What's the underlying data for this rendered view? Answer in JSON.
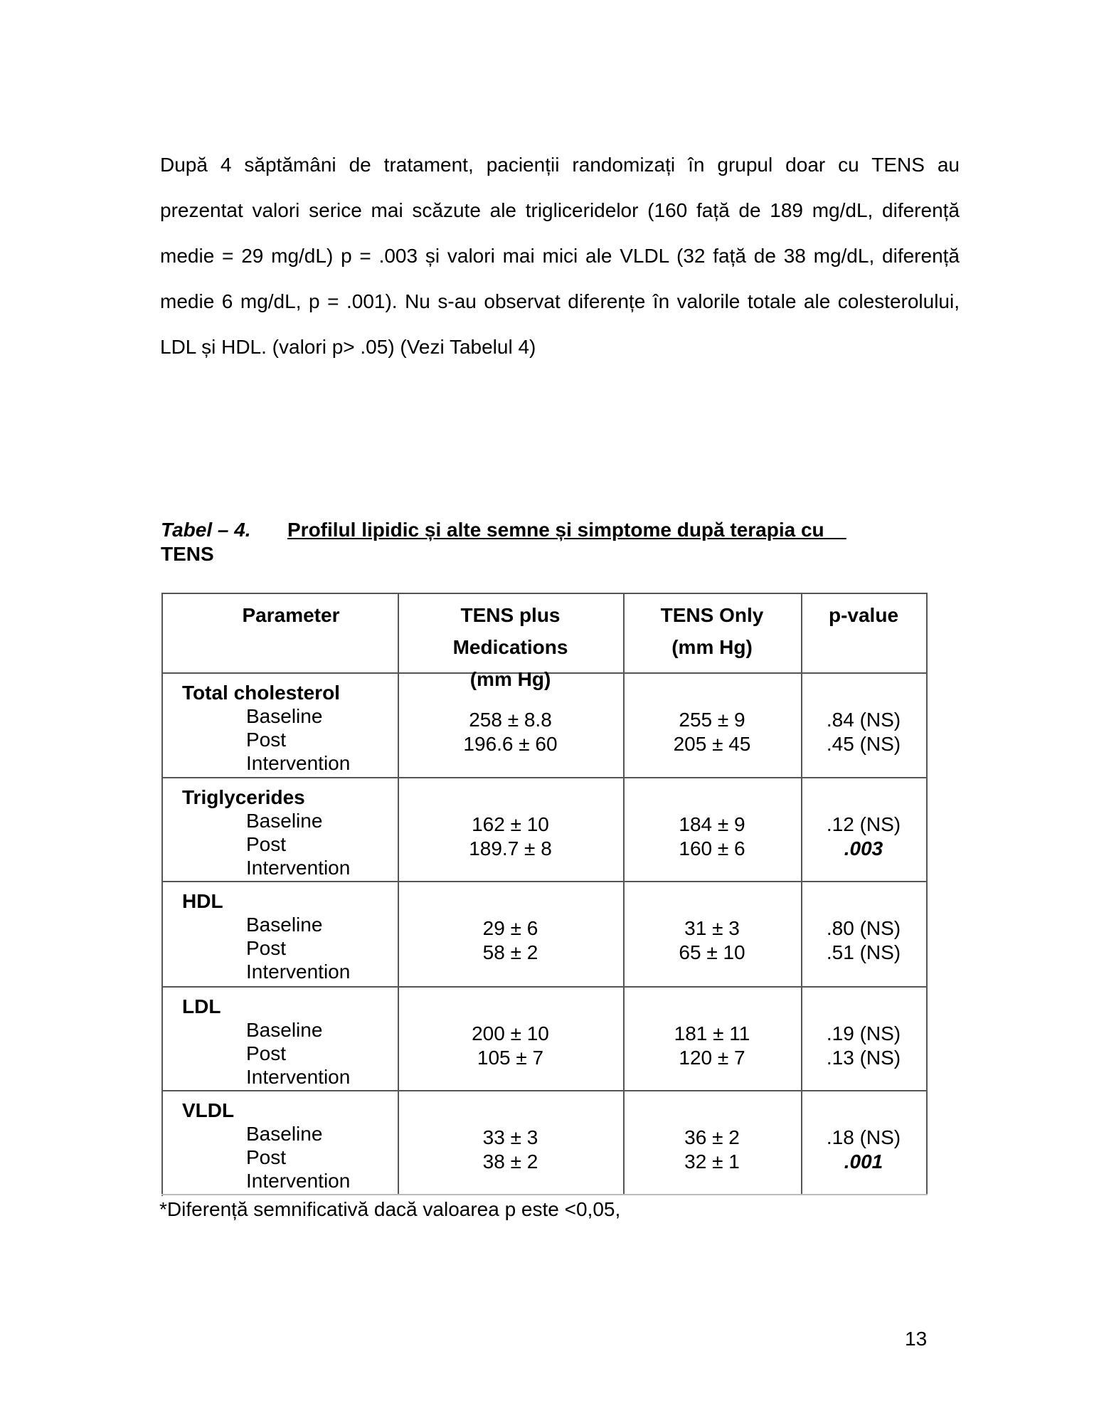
{
  "paragraph": "După 4 săptămâni de tratament, pacienții randomizați în grupul doar cu TENS au prezentat valori serice mai scăzute ale trigliceridelor (160 față de 189 mg/dL, diferență medie = 29 mg/dL) p = .003 și valori mai mici ale VLDL (32 față de 38 mg/dL, diferență medie 6 mg/dL, p = .001). Nu s-au observat diferențe în valorile totale ale colesterolului, LDL și HDL. (valori p> .05) (Vezi Tabelul 4)",
  "table_caption": {
    "label": "Tabel – 4.",
    "title": "Profilul lipidic și alte semne și simptome după terapia cu    ",
    "title_cont": "TENS"
  },
  "table": {
    "headers": [
      [
        "Parameter"
      ],
      [
        "TENS plus",
        "Medications",
        "(mm Hg)"
      ],
      [
        "TENS Only",
        "(mm Hg)"
      ],
      [
        "p-value"
      ]
    ],
    "sub_labels": [
      "Baseline",
      "Post",
      "Intervention"
    ],
    "rows": [
      {
        "parameter": "Total cholesterol",
        "tens_plus": [
          "258 ± 8.8",
          "196.6 ± 60"
        ],
        "tens_only": [
          "255 ± 9",
          "205 ± 45"
        ],
        "p_value": [
          ".84 (NS)",
          ".45 (NS)"
        ],
        "significant": [
          false,
          false
        ]
      },
      {
        "parameter": "Triglycerides",
        "tens_plus": [
          "162 ± 10",
          "189.7 ± 8"
        ],
        "tens_only": [
          "184 ± 9",
          "160 ± 6"
        ],
        "p_value": [
          ".12 (NS)",
          ".003"
        ],
        "significant": [
          false,
          true
        ]
      },
      {
        "parameter": "HDL",
        "tens_plus": [
          "29 ± 6",
          "58 ± 2"
        ],
        "tens_only": [
          "31 ± 3",
          "65 ± 10"
        ],
        "p_value": [
          ".80 (NS)",
          ".51 (NS)"
        ],
        "significant": [
          false,
          false
        ]
      },
      {
        "parameter": "LDL",
        "tens_plus": [
          "200 ± 10",
          "105 ± 7"
        ],
        "tens_only": [
          "181 ± 11",
          "120 ± 7"
        ],
        "p_value": [
          ".19 (NS)",
          ".13 (NS)"
        ],
        "significant": [
          false,
          false
        ]
      },
      {
        "parameter": "VLDL",
        "tens_plus": [
          "33 ± 3",
          "38 ± 2"
        ],
        "tens_only": [
          "36 ± 2",
          "32 ± 1"
        ],
        "p_value": [
          ".18 (NS)",
          ".001"
        ],
        "significant": [
          false,
          true
        ]
      }
    ]
  },
  "footnote": "*Diferență semnificativă dacă valoarea p este <0,05,",
  "page_number": "13"
}
